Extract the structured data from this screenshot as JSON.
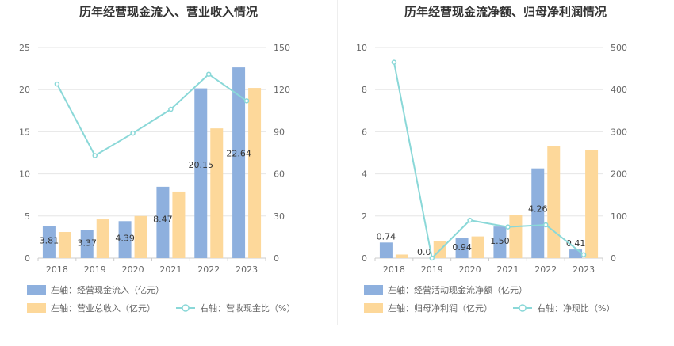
{
  "chart_data": [
    {
      "type": "bar",
      "title": "历年经营现金流入、营业收入情况",
      "categories": [
        "2018",
        "2019",
        "2020",
        "2021",
        "2022",
        "2023"
      ],
      "left_axis": {
        "min": 0,
        "max": 25,
        "ticks": [
          "0",
          "5",
          "10",
          "15",
          "20",
          "25"
        ]
      },
      "right_axis": {
        "min": 0,
        "max": 150,
        "ticks": [
          "0",
          "30",
          "60",
          "90",
          "120",
          "150"
        ]
      },
      "series": [
        {
          "name": "左轴：经营现金流入（亿元）",
          "type": "bar",
          "axis": "left",
          "color": "#8eb0de",
          "values": [
            3.81,
            3.37,
            4.39,
            8.47,
            20.15,
            22.64
          ],
          "labels": [
            "3.81",
            "3.37",
            "4.39",
            "8.47",
            "20.15",
            "22.64"
          ]
        },
        {
          "name": "左轴：营业总收入（亿元）",
          "type": "bar",
          "axis": "left",
          "color": "#fdd89a",
          "values": [
            3.1,
            4.6,
            5.0,
            7.9,
            15.4,
            20.2
          ]
        },
        {
          "name": "右轴：营收现金比（%）",
          "type": "line",
          "axis": "right",
          "color": "#8ad8d8",
          "values": [
            124,
            73,
            89,
            106,
            131,
            112
          ]
        }
      ]
    },
    {
      "type": "bar",
      "title": "历年经营现金流净额、归母净利润情况",
      "categories": [
        "2018",
        "2019",
        "2020",
        "2021",
        "2022",
        "2023"
      ],
      "left_axis": {
        "min": 0,
        "max": 10,
        "ticks": [
          "0",
          "2",
          "4",
          "6",
          "8",
          "10"
        ]
      },
      "right_axis": {
        "min": 0,
        "max": 500,
        "ticks": [
          "0",
          "100",
          "200",
          "300",
          "400",
          "500"
        ]
      },
      "series": [
        {
          "name": "左轴：经营活动现金流净额（亿元）",
          "type": "bar",
          "axis": "left",
          "color": "#8eb0de",
          "values": [
            0.74,
            0.0,
            0.94,
            1.5,
            4.26,
            0.41
          ],
          "labels": [
            "0.74",
            "0.0",
            "0.94",
            "1.50",
            "4.26",
            "0.41"
          ]
        },
        {
          "name": "左轴：归母净利润（亿元）",
          "type": "bar",
          "axis": "left",
          "color": "#fdd89a",
          "values": [
            0.17,
            0.82,
            1.03,
            2.03,
            5.33,
            5.12
          ]
        },
        {
          "name": "右轴：净现比（%）",
          "type": "line",
          "axis": "right",
          "color": "#8ad8d8",
          "values": [
            465,
            0,
            90,
            74,
            79,
            8
          ]
        }
      ]
    }
  ]
}
